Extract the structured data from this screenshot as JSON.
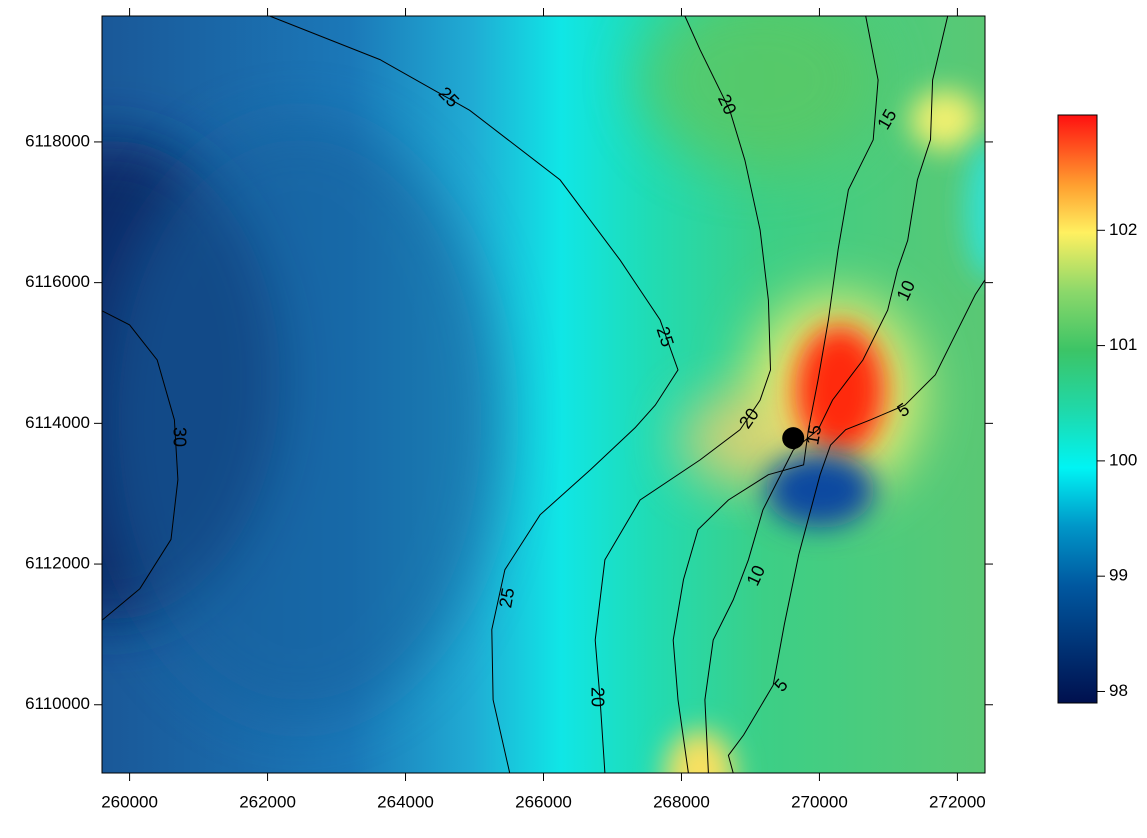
{
  "chart_data": {
    "type": "contour",
    "xlim": [
      259600,
      272400
    ],
    "ylim": [
      6109030,
      6119790
    ],
    "xticks": [
      260000,
      262000,
      264000,
      266000,
      268000,
      270000,
      272000
    ],
    "yticks": [
      6110000,
      6112000,
      6114000,
      6116000,
      6118000
    ],
    "clim": [
      97.9,
      103
    ],
    "cticks": [
      98,
      99,
      100,
      101,
      102
    ],
    "point": {
      "x": 269620,
      "y": 6113790
    },
    "contours": [
      {
        "level": 30,
        "x": [
          259600,
          260000,
          260400,
          260650,
          260700,
          260600,
          260150,
          259600
        ],
        "y": [
          6115600,
          6115400,
          6114900,
          6114050,
          6113200,
          6112350,
          6111650,
          6111200
        ]
      },
      {
        "level": 25,
        "x": [
          262030,
          263630,
          264930,
          266240,
          267110,
          267690,
          267950,
          267620,
          267330,
          266680,
          265950,
          265440,
          265250,
          265270,
          265510
        ],
        "y": [
          6119790,
          6119170,
          6118450,
          6117460,
          6116320,
          6115470,
          6114760,
          6114260,
          6113940,
          6113340,
          6112700,
          6111920,
          6111070,
          6110070,
          6109030
        ]
      },
      {
        "level": 20,
        "x": [
          268050,
          268270,
          268700,
          268920,
          269140,
          269260,
          269290,
          269140,
          268850,
          268270,
          267400,
          266890,
          266750,
          266820,
          266890
        ],
        "y": [
          6119790,
          6119310,
          6118450,
          6117740,
          6116750,
          6115750,
          6114760,
          6114330,
          6113910,
          6113480,
          6112910,
          6112060,
          6110920,
          6110070,
          6109030
        ]
      },
      {
        "level": 15,
        "x": [
          270670,
          270850,
          270780,
          270420,
          270270,
          270130,
          269980,
          269840,
          269770,
          269260,
          268680,
          268240,
          268030,
          267880,
          267950,
          268100
        ],
        "y": [
          6119790,
          6118880,
          6118030,
          6117320,
          6116470,
          6115470,
          6114620,
          6113910,
          6113410,
          6113270,
          6112910,
          6112490,
          6111780,
          6110920,
          6110070,
          6109030
        ]
      },
      {
        "level": 10,
        "x": [
          271860,
          271640,
          271610,
          271420,
          271280,
          271130,
          270990,
          270630,
          270190,
          269980,
          269620,
          269180,
          268970,
          268750,
          268460,
          268340,
          268390
        ],
        "y": [
          6119790,
          6118880,
          6118030,
          6117460,
          6116600,
          6116180,
          6115610,
          6114900,
          6114330,
          6113910,
          6113620,
          6112770,
          6112060,
          6111490,
          6110920,
          6110070,
          6109030
        ]
      },
      {
        "level": 5,
        "x": [
          272400,
          272260,
          271970,
          271680,
          271240,
          270740,
          270380,
          270160,
          270010,
          269700,
          269490,
          269330,
          268900,
          268680,
          268750
        ],
        "y": [
          6116040,
          6115830,
          6115260,
          6114690,
          6114260,
          6114050,
          6113910,
          6113690,
          6113270,
          6112130,
          6111140,
          6110280,
          6109570,
          6109280,
          6109030
        ]
      }
    ]
  }
}
